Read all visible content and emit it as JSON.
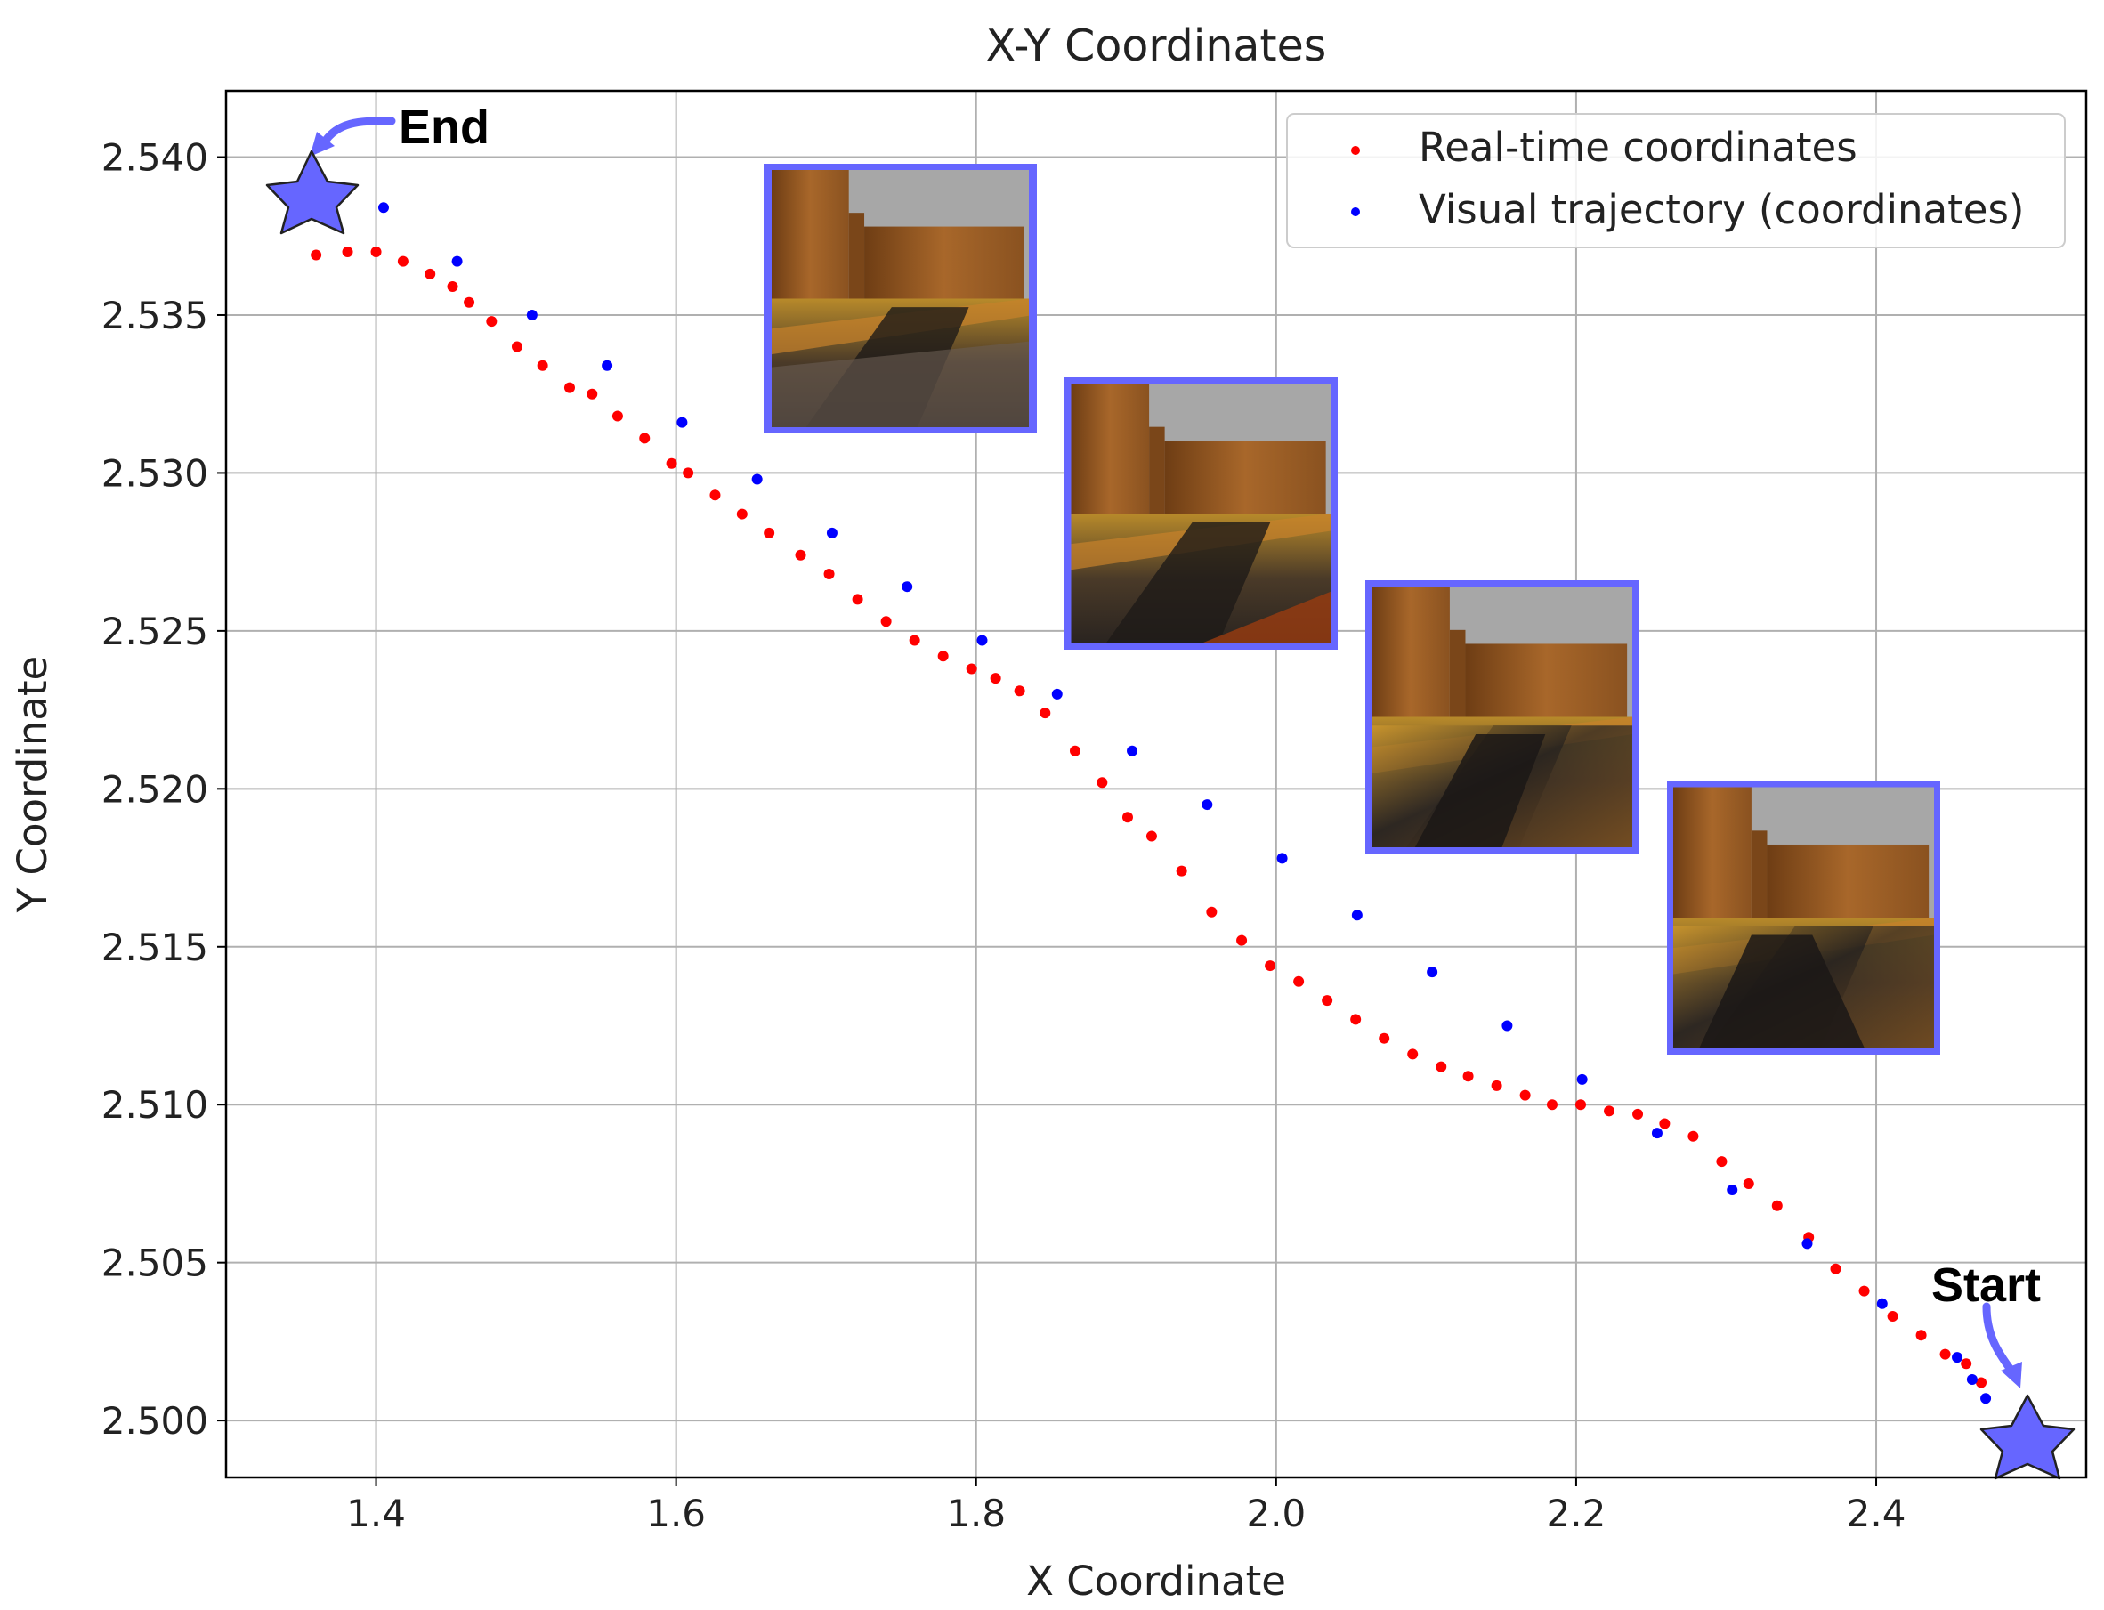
{
  "chart_data": {
    "type": "scatter",
    "title": "X-Y Coordinates",
    "xlabel": "X Coordinate",
    "ylabel": "Y Coordinate",
    "xlim": [
      1.3,
      2.54
    ],
    "ylim": [
      2.4982,
      2.5421
    ],
    "xticks": [
      1.4,
      1.6,
      1.8,
      2.0,
      2.2,
      2.4
    ],
    "xtick_labels": [
      "1.4",
      "1.6",
      "1.8",
      "2.0",
      "2.2",
      "2.4"
    ],
    "yticks": [
      2.5,
      2.505,
      2.51,
      2.515,
      2.52,
      2.525,
      2.53,
      2.535,
      2.54
    ],
    "ytick_labels": [
      "2.500",
      "2.505",
      "2.510",
      "2.515",
      "2.520",
      "2.525",
      "2.530",
      "2.535",
      "2.540"
    ],
    "grid": true,
    "legend_position": "top-right",
    "series": [
      {
        "name": "Real-time coordinates",
        "color": "#ff0000",
        "points": [
          [
            1.36,
            2.5369
          ],
          [
            1.381,
            2.537
          ],
          [
            1.4,
            2.537
          ],
          [
            1.418,
            2.5367
          ],
          [
            1.436,
            2.5363
          ],
          [
            1.451,
            2.5359
          ],
          [
            1.462,
            2.5354
          ],
          [
            1.477,
            2.5348
          ],
          [
            1.494,
            2.534
          ],
          [
            1.511,
            2.5334
          ],
          [
            1.529,
            2.5327
          ],
          [
            1.544,
            2.5325
          ],
          [
            1.561,
            2.5318
          ],
          [
            1.579,
            2.5311
          ],
          [
            1.597,
            2.5303
          ],
          [
            1.608,
            2.53
          ],
          [
            1.626,
            2.5293
          ],
          [
            1.644,
            2.5287
          ],
          [
            1.662,
            2.5281
          ],
          [
            1.683,
            2.5274
          ],
          [
            1.702,
            2.5268
          ],
          [
            1.721,
            2.526
          ],
          [
            1.74,
            2.5253
          ],
          [
            1.759,
            2.5247
          ],
          [
            1.778,
            2.5242
          ],
          [
            1.797,
            2.5238
          ],
          [
            1.813,
            2.5235
          ],
          [
            1.829,
            2.5231
          ],
          [
            1.846,
            2.5224
          ],
          [
            1.866,
            2.5212
          ],
          [
            1.884,
            2.5202
          ],
          [
            1.901,
            2.5191
          ],
          [
            1.917,
            2.5185
          ],
          [
            1.937,
            2.5174
          ],
          [
            1.957,
            2.5161
          ],
          [
            1.977,
            2.5152
          ],
          [
            1.996,
            2.5144
          ],
          [
            2.015,
            2.5139
          ],
          [
            2.034,
            2.5133
          ],
          [
            2.053,
            2.5127
          ],
          [
            2.072,
            2.5121
          ],
          [
            2.091,
            2.5116
          ],
          [
            2.11,
            2.5112
          ],
          [
            2.128,
            2.5109
          ],
          [
            2.147,
            2.5106
          ],
          [
            2.166,
            2.5103
          ],
          [
            2.184,
            2.51
          ],
          [
            2.203,
            2.51
          ],
          [
            2.222,
            2.5098
          ],
          [
            2.241,
            2.5097
          ],
          [
            2.259,
            2.5094
          ],
          [
            2.278,
            2.509
          ],
          [
            2.297,
            2.5082
          ],
          [
            2.315,
            2.5075
          ],
          [
            2.334,
            2.5068
          ],
          [
            2.355,
            2.5058
          ],
          [
            2.373,
            2.5048
          ],
          [
            2.392,
            2.5041
          ],
          [
            2.411,
            2.5033
          ],
          [
            2.43,
            2.5027
          ],
          [
            2.446,
            2.5021
          ],
          [
            2.46,
            2.5018
          ],
          [
            2.47,
            2.5012
          ]
        ]
      },
      {
        "name": "Visual trajectory (coordinates)",
        "color": "#0000ff",
        "points": [
          [
            1.405,
            2.5384
          ],
          [
            1.454,
            2.5367
          ],
          [
            1.504,
            2.535
          ],
          [
            1.554,
            2.5334
          ],
          [
            1.604,
            2.5316
          ],
          [
            1.654,
            2.5298
          ],
          [
            1.704,
            2.5281
          ],
          [
            1.754,
            2.5264
          ],
          [
            1.804,
            2.5247
          ],
          [
            1.854,
            2.523
          ],
          [
            1.904,
            2.5212
          ],
          [
            1.954,
            2.5195
          ],
          [
            2.004,
            2.5178
          ],
          [
            2.054,
            2.516
          ],
          [
            2.104,
            2.5142
          ],
          [
            2.154,
            2.5125
          ],
          [
            2.204,
            2.5108
          ],
          [
            2.254,
            2.5091
          ],
          [
            2.304,
            2.5073
          ],
          [
            2.354,
            2.5056
          ],
          [
            2.404,
            2.5037
          ],
          [
            2.454,
            2.502
          ],
          [
            2.464,
            2.5013
          ],
          [
            2.473,
            2.5007
          ]
        ]
      }
    ],
    "annotations": [
      {
        "label": "End",
        "at": [
          1.37,
          2.5386
        ]
      },
      {
        "label": "Start",
        "at": [
          2.515,
          2.4996
        ]
      }
    ],
    "accent_color": "#6666ff",
    "thumbnails": [
      {
        "name": "camera-view-1"
      },
      {
        "name": "camera-view-2"
      },
      {
        "name": "camera-view-3"
      },
      {
        "name": "camera-view-4"
      }
    ]
  }
}
